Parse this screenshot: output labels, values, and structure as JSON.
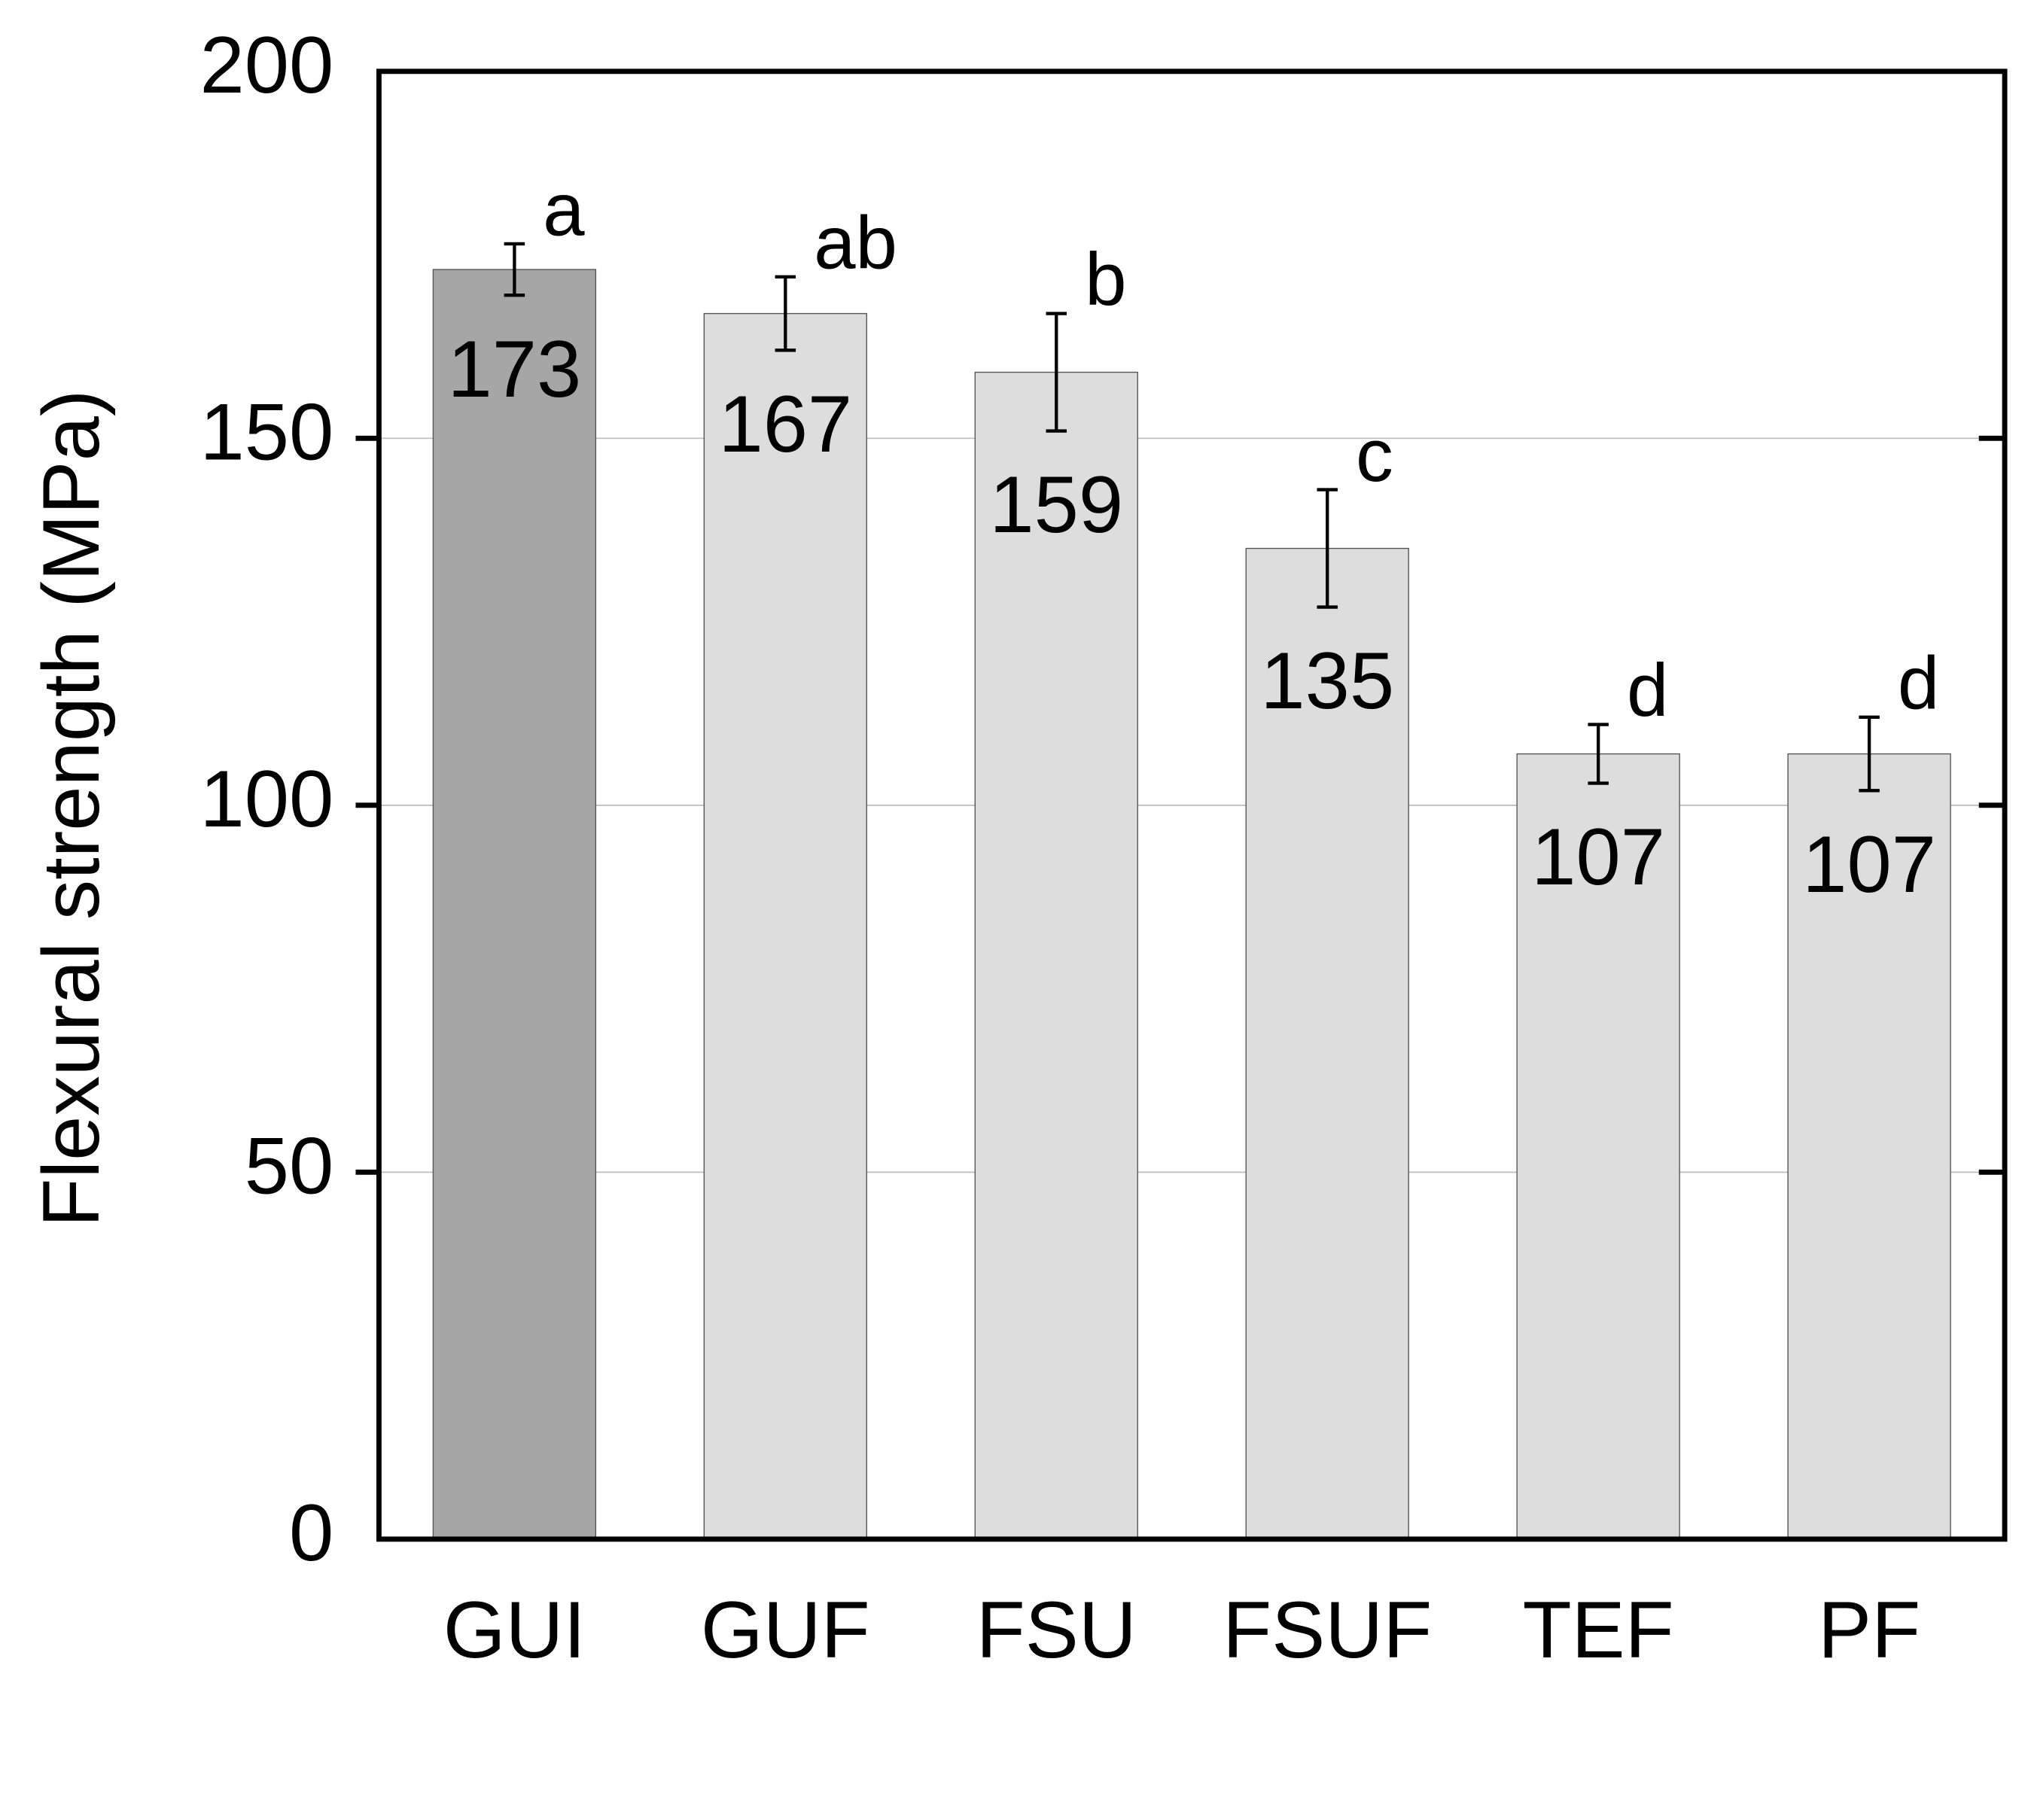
{
  "chart_data": {
    "type": "bar",
    "y_label": "Flexural strength (MPa)",
    "categories": [
      "GUI",
      "GUF",
      "FSU",
      "FSUF",
      "TEF",
      "PF"
    ],
    "values": [
      173,
      167,
      159,
      135,
      107,
      107
    ],
    "errors": [
      3.5,
      5,
      8,
      8,
      4,
      5
    ],
    "letters": [
      "a",
      "ab",
      "b",
      "c",
      "d",
      "d"
    ],
    "colors": [
      "#a6a6a6",
      "#dcdddc",
      "#dcdddc",
      "#dcdddc",
      "#dcdddc",
      "#dcdddc"
    ],
    "ylim": [
      0,
      200
    ],
    "yticks": [
      0,
      50,
      100,
      150,
      200
    ],
    "grid": true
  }
}
